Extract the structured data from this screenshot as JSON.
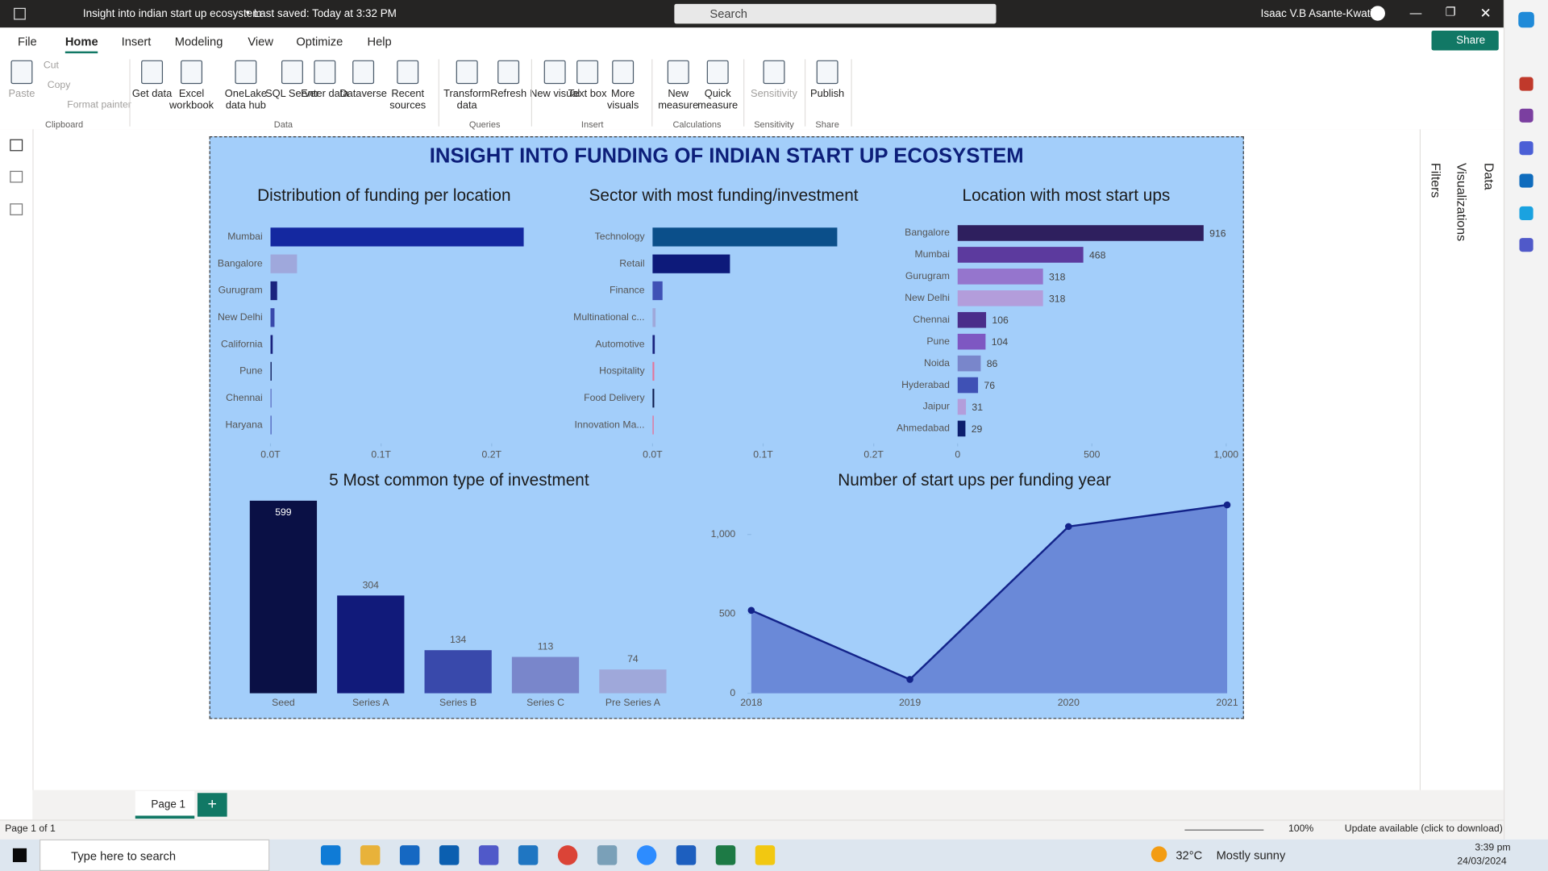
{
  "window": {
    "title": "Insight into indian start up ecosystem",
    "saved": "Last saved: Today at 3:32 PM",
    "search": "Search",
    "user": "Isaac V.B Asante-Kwatia"
  },
  "menu": [
    "File",
    "Home",
    "Insert",
    "Modeling",
    "View",
    "Optimize",
    "Help"
  ],
  "share": "Share",
  "ribbon": [
    {
      "group": "Clipboard",
      "buttons": [
        "Paste",
        "Cut",
        "Copy",
        "Format painter"
      ]
    },
    {
      "group": "Data",
      "buttons": [
        "Get data",
        "Excel workbook",
        "OneLake data hub",
        "SQL Server",
        "Enter data",
        "Dataverse",
        "Recent sources"
      ]
    },
    {
      "group": "Queries",
      "buttons": [
        "Transform data",
        "Refresh"
      ]
    },
    {
      "group": "Insert",
      "buttons": [
        "New visual",
        "Text box",
        "More visuals"
      ]
    },
    {
      "group": "Calculations",
      "buttons": [
        "New measure",
        "Quick measure"
      ]
    },
    {
      "group": "Sensitivity",
      "buttons": [
        "Sensitivity"
      ]
    },
    {
      "group": "Share",
      "buttons": [
        "Publish"
      ]
    }
  ],
  "report": {
    "title": "INSIGHT INTO FUNDING OF INDIAN START UP ECOSYSTEM",
    "charts": [
      {
        "type": "bar",
        "orientation": "horizontal",
        "title": "Distribution of funding per location",
        "categories": [
          "Mumbai",
          "Bangalore",
          "Gurugram",
          "New Delhi",
          "California",
          "Pune",
          "Chennai",
          "Haryana"
        ],
        "values": [
          229000000000,
          24000000000,
          6000000000,
          3600000000,
          2000000000,
          1000000000,
          500000000,
          500000000
        ],
        "colors": [
          "#1428a0",
          "#9fa8dc",
          "#1a237e",
          "#3949ab",
          "#1a237e",
          "#0d1a5a",
          "#5c6bc0",
          "#4a5bb8"
        ],
        "xlim": [
          0,
          250000000000
        ],
        "xticks": [
          {
            "value": 0,
            "label": "0.0T"
          },
          {
            "value": 100000000000,
            "label": "0.1T"
          },
          {
            "value": 200000000000,
            "label": "0.2T"
          }
        ]
      },
      {
        "type": "bar",
        "orientation": "horizontal",
        "title": "Sector with most funding/investment",
        "categories": [
          "Technology",
          "Retail",
          "Finance",
          "Multinational c...",
          "Automotive",
          "Hospitality",
          "Food Delivery",
          "Innovation Ma..."
        ],
        "values": [
          167000000000,
          70000000000,
          9000000000,
          2700000000,
          2000000000,
          1500000000,
          1500000000,
          1000000000
        ],
        "colors": [
          "#0b4f8a",
          "#0d1a7a",
          "#3f51b5",
          "#9fa8da",
          "#1a237e",
          "#e57399",
          "#0d1a4a",
          "#e57399"
        ],
        "xlim": [
          0,
          250000000000
        ],
        "xticks": [
          {
            "value": 0,
            "label": "0.0T"
          },
          {
            "value": 100000000000,
            "label": "0.1T"
          },
          {
            "value": 200000000000,
            "label": "0.2T"
          }
        ]
      },
      {
        "type": "bar",
        "orientation": "horizontal",
        "title": "Location with most start ups",
        "show_labels": true,
        "categories": [
          "Bangalore",
          "Mumbai",
          "Gurugram",
          "New Delhi",
          "Chennai",
          "Pune",
          "Noida",
          "Hyderabad",
          "Jaipur",
          "Ahmedabad"
        ],
        "values": [
          916,
          468,
          318,
          318,
          106,
          104,
          86,
          76,
          31,
          29
        ],
        "colors": [
          "#2e1f5e",
          "#5c3a9e",
          "#9575cd",
          "#b39ddb",
          "#4a2d8a",
          "#7e57c2",
          "#7986cb",
          "#3f51b5",
          "#b39ddb",
          "#0d1f6e"
        ],
        "xlim": [
          0,
          1000
        ],
        "xticks": [
          0,
          500,
          {
            "value": 1000,
            "label": "1,000"
          }
        ]
      },
      {
        "type": "bar",
        "orientation": "vertical",
        "title": "5 Most common type of investment",
        "show_labels": true,
        "categories": [
          "Seed",
          "Series A",
          "Series B",
          "Series C",
          "Pre Series A"
        ],
        "values": [
          599,
          304,
          134,
          113,
          74
        ],
        "colors": [
          "#0a1045",
          "#111a7a",
          "#3949ab",
          "#7986cb",
          "#9fa8da"
        ],
        "ylim": [
          0,
          600
        ]
      },
      {
        "type": "area",
        "title": "Number of start ups per funding year",
        "categories": [
          "2018",
          "2019",
          "2020",
          "2021"
        ],
        "values": [
          522,
          87,
          1050,
          1186
        ],
        "color": "#13238a",
        "fill": "#6a89d8",
        "ylim": [
          0,
          1250
        ],
        "yticks": [
          0,
          500,
          {
            "value": 1000,
            "label": "1,000"
          }
        ]
      }
    ]
  },
  "panes": [
    "Filters",
    "Visualizations",
    "Data"
  ],
  "pages": {
    "tab": "Page 1"
  },
  "status": {
    "page": "Page 1 of 1",
    "zoom": "100%",
    "update": "Update available (click to download)"
  },
  "taskbar": {
    "search": "Type here to search",
    "temp": "32°C",
    "weather": "Mostly sunny",
    "time": "3:39 pm",
    "date": "24/03/2024"
  }
}
